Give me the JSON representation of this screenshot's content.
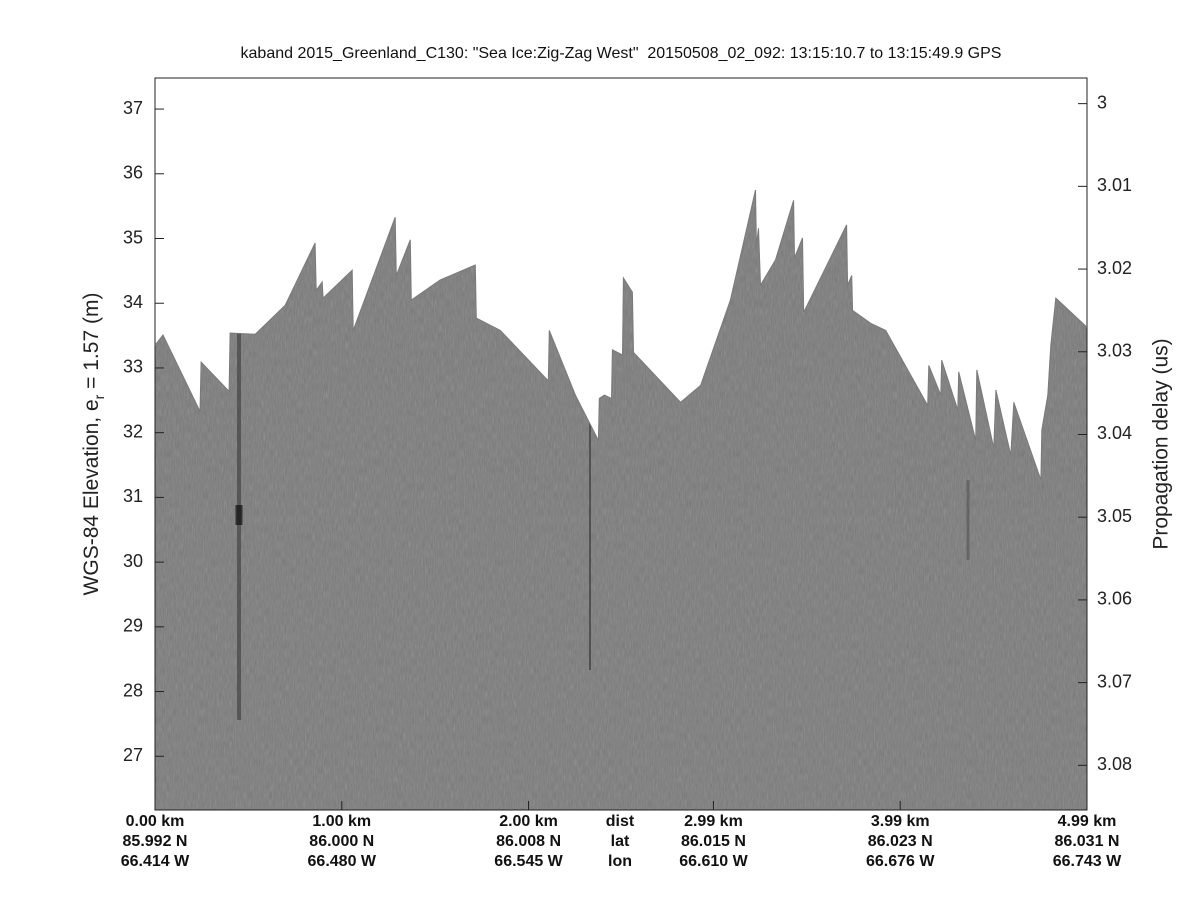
{
  "chart_data": {
    "type": "echogram",
    "title": "kaband 2015_Greenland_C130: \"Sea Ice:Zig-Zag West\"  20150508_02_092: 13:15:10.7 to 13:15:49.9 GPS",
    "ylabel": {
      "main": "WGS-84 Elevation, e",
      "sub": "r",
      "rest": " = 1.57 (m)"
    },
    "y2label": "Propagation delay (us)",
    "row_labels": [
      "dist",
      "lat",
      "lon"
    ],
    "xlim": [
      0,
      4.99
    ],
    "xticks": [
      {
        "value": 0,
        "label": "0.00 km"
      },
      {
        "value": 1,
        "label": "1.00 km"
      },
      {
        "value": 2,
        "label": "2.00 km"
      },
      {
        "value": 2.99,
        "label": "2.99 km"
      },
      {
        "value": 3.99,
        "label": "3.99 km"
      },
      {
        "value": 4.99,
        "label": "4.99 km"
      }
    ],
    "lat_labels": [
      "85.992 N",
      "86.000 N",
      "86.008 N",
      "86.015 N",
      "86.023 N",
      "86.031 N"
    ],
    "lon_labels": [
      "66.414 W",
      "66.480 W",
      "66.545 W",
      "66.610 W",
      "66.676 W",
      "66.743 W"
    ],
    "ylim": [
      26.17,
      37.48
    ],
    "yticks": [
      27,
      28,
      29,
      30,
      31,
      32,
      33,
      34,
      35,
      36,
      37
    ],
    "y2lim": [
      3.0854,
      2.9969
    ],
    "y2ticks": [
      3,
      3.01,
      3.02,
      3.03,
      3.04,
      3.05,
      3.06,
      3.07,
      3.08
    ],
    "color": "#7a7a7a",
    "x": [
      0.0,
      0.043,
      0.241,
      0.247,
      0.397,
      0.402,
      0.536,
      0.697,
      0.857,
      0.863,
      0.895,
      0.9,
      1.056,
      1.061,
      1.286,
      1.292,
      1.367,
      1.372,
      1.527,
      1.715,
      1.72,
      1.849,
      2.106,
      2.111,
      2.251,
      2.374,
      2.379,
      2.406,
      2.444,
      2.449,
      2.503,
      2.508,
      2.556,
      2.562,
      2.814,
      2.921,
      3.081,
      3.215,
      3.22,
      3.231,
      3.242,
      3.322,
      3.419,
      3.424,
      3.467,
      3.473,
      3.703,
      3.708,
      3.73,
      3.735,
      3.832,
      3.912,
      4.137,
      4.143,
      4.207,
      4.212,
      4.298,
      4.303,
      4.394,
      4.4,
      4.491,
      4.502,
      4.582,
      4.598,
      4.743,
      4.748,
      4.78,
      4.796,
      4.823,
      4.99
    ],
    "values": [
      33.35,
      33.51,
      32.33,
      33.09,
      32.64,
      33.54,
      33.52,
      33.97,
      34.93,
      34.2,
      34.33,
      34.08,
      34.51,
      33.58,
      35.33,
      34.43,
      34.98,
      34.05,
      34.36,
      34.59,
      33.77,
      33.58,
      32.8,
      33.58,
      32.58,
      31.88,
      32.53,
      32.58,
      32.53,
      33.28,
      33.2,
      34.39,
      34.17,
      33.24,
      32.47,
      32.73,
      34.05,
      35.75,
      34.9,
      35.16,
      34.28,
      34.67,
      35.59,
      34.7,
      35.01,
      33.86,
      35.21,
      34.28,
      34.43,
      33.89,
      33.69,
      33.58,
      32.42,
      33.04,
      32.58,
      33.12,
      32.35,
      32.94,
      31.88,
      32.97,
      31.76,
      32.66,
      31.65,
      32.47,
      31.27,
      32.04,
      32.58,
      33.35,
      34.08,
      33.63
    ]
  }
}
